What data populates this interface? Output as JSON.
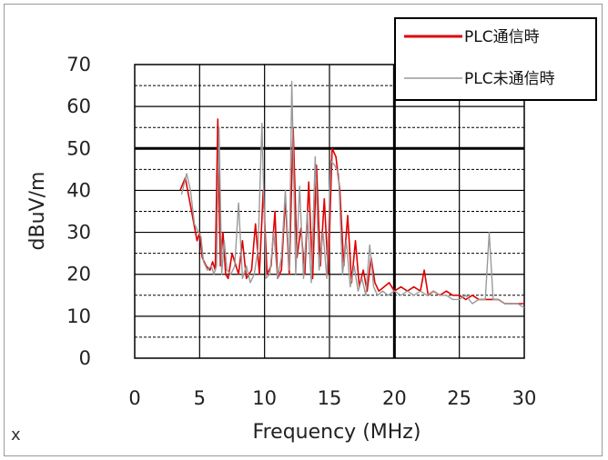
{
  "chart_data": {
    "type": "line",
    "title": "",
    "xlabel": "Frequency (MHz)",
    "ylabel": "dBuV/m",
    "xlim": [
      0,
      30
    ],
    "ylim": [
      0,
      70
    ],
    "x_ticks": [
      "0",
      "5",
      "10",
      "15",
      "20",
      "25",
      "30"
    ],
    "y_ticks": [
      "0",
      "10",
      "20",
      "30",
      "40",
      "50",
      "60",
      "70"
    ],
    "grid": true,
    "legend_position": "top-right",
    "corner_label": "x",
    "series": [
      {
        "name": "PLC通信時",
        "color": "#e00000",
        "x": [
          3.5,
          3.9,
          4.2,
          4.5,
          4.8,
          5.0,
          5.2,
          5.5,
          5.8,
          6.0,
          6.2,
          6.4,
          6.6,
          6.8,
          7.0,
          7.2,
          7.5,
          7.8,
          8.0,
          8.3,
          8.6,
          9.0,
          9.3,
          9.6,
          9.9,
          10.2,
          10.5,
          10.8,
          11.0,
          11.3,
          11.6,
          11.9,
          12.2,
          12.5,
          12.8,
          13.1,
          13.4,
          13.7,
          14.0,
          14.3,
          14.6,
          14.9,
          15.2,
          15.5,
          15.8,
          16.1,
          16.4,
          16.7,
          17.0,
          17.3,
          17.6,
          17.9,
          18.2,
          18.5,
          18.8,
          19.2,
          19.6,
          20.0,
          20.5,
          21.0,
          21.5,
          22.0,
          22.3,
          22.6,
          23.0,
          23.5,
          24.0,
          24.5,
          25.0,
          25.5,
          26.0,
          26.5,
          27.0,
          27.5,
          28.0,
          28.5,
          29.0,
          29.5,
          30.0
        ],
        "values": [
          40,
          43,
          38,
          33,
          28,
          30,
          24,
          22,
          21,
          23,
          21,
          57,
          22,
          30,
          20,
          19,
          25,
          22,
          20,
          28,
          19,
          21,
          32,
          20,
          40,
          20,
          22,
          35,
          19,
          21,
          38,
          20,
          55,
          24,
          31,
          20,
          42,
          19,
          46,
          22,
          38,
          20,
          50,
          48,
          40,
          22,
          34,
          18,
          28,
          17,
          21,
          16,
          24,
          18,
          16,
          17,
          18,
          16,
          17,
          16,
          17,
          16,
          21,
          15,
          16,
          15,
          16,
          15,
          15,
          14,
          15,
          14,
          14,
          14,
          14,
          13,
          13,
          13,
          13
        ]
      },
      {
        "name": "PLC未通信時",
        "color": "#9a9a9a",
        "x": [
          3.6,
          4.0,
          4.3,
          4.6,
          4.9,
          5.1,
          5.3,
          5.6,
          5.9,
          6.1,
          6.3,
          6.5,
          6.7,
          6.9,
          7.1,
          7.4,
          7.7,
          8.0,
          8.3,
          8.6,
          8.9,
          9.2,
          9.5,
          9.8,
          10.1,
          10.4,
          10.7,
          11.0,
          11.3,
          11.6,
          11.9,
          12.1,
          12.4,
          12.7,
          13.0,
          13.3,
          13.6,
          13.9,
          14.2,
          14.5,
          14.8,
          15.1,
          15.4,
          15.7,
          16.0,
          16.3,
          16.6,
          16.9,
          17.2,
          17.5,
          17.8,
          18.1,
          18.4,
          18.7,
          19.1,
          19.5,
          20.0,
          20.5,
          21.0,
          21.5,
          22.0,
          22.5,
          23.0,
          23.5,
          24.0,
          24.5,
          25.0,
          25.5,
          26.0,
          26.5,
          27.0,
          27.3,
          27.6,
          28.0,
          28.5,
          29.0,
          29.5,
          30.0
        ],
        "values": [
          39,
          44,
          40,
          32,
          30,
          29,
          23,
          21,
          22,
          20,
          22,
          55,
          20,
          28,
          21,
          20,
          22,
          37,
          19,
          22,
          18,
          20,
          26,
          56,
          19,
          20,
          30,
          19,
          24,
          40,
          21,
          66,
          20,
          41,
          19,
          35,
          18,
          48,
          21,
          30,
          19,
          47,
          46,
          44,
          20,
          28,
          17,
          22,
          16,
          19,
          15,
          27,
          17,
          15,
          16,
          15,
          16,
          15,
          16,
          15,
          16,
          15,
          16,
          15,
          15,
          14,
          14,
          15,
          13,
          14,
          14,
          30,
          14,
          14,
          13,
          13,
          13,
          12
        ]
      }
    ]
  }
}
